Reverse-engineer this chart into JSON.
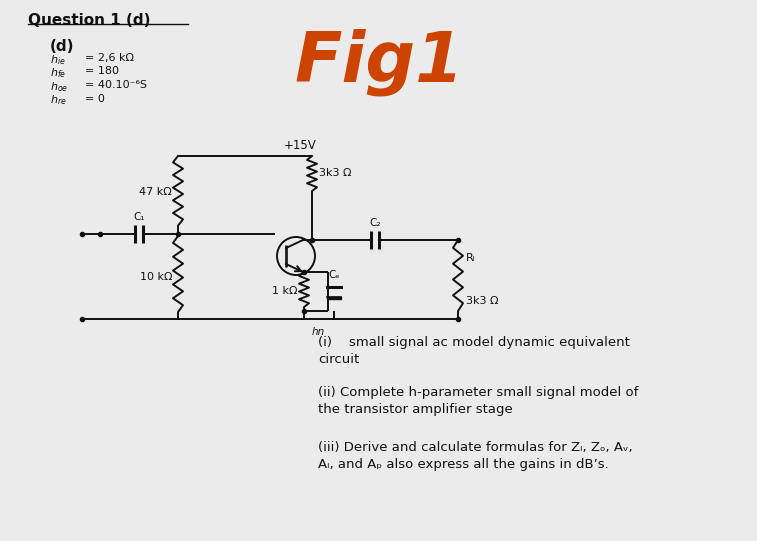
{
  "title": "Question 1 (d)",
  "subtitle": "(d)",
  "fig1_label": "Fig1",
  "param_syms": [
    "$h_{ie}$",
    "$h_{fe}$",
    "$h_{oe}$",
    "$h_{re}$"
  ],
  "param_vals": [
    "= 2,6 kΩ",
    "= 180",
    "= 40.10⁻⁶S",
    "= 0"
  ],
  "supply_label": "+15V",
  "R1_label": "47 kΩ",
  "R2_label": "10 kΩ",
  "RC_label": "3k3 Ω",
  "RE_label": "1 kΩ",
  "RL_label": "Rₗ",
  "RL_val": "3k3 Ω",
  "CE_label": "Cₑ",
  "C1_label": "C₁",
  "C2_label": "C₂",
  "q1": "(i)    small signal ac model dynamic equivalent\ncircuit",
  "q2": "(ii) Complete h-parameter small signal model of\nthe transistor amplifier stage",
  "q3": "(iii) Derive and calculate formulas for Zᵢ, Zₒ, Aᵥ,\nAᵢ, and Aₚ also express all the gains in dB’s.",
  "bg_color": "#ebebeb",
  "orange": "#cc4400",
  "black": "#111111",
  "lw": 1.4
}
